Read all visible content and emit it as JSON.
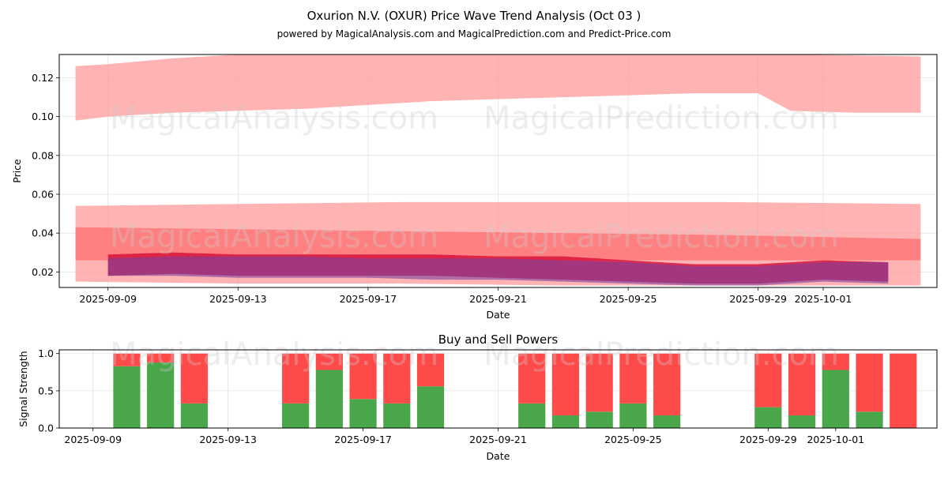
{
  "header": {
    "title": "Oxurion N.V. (OXUR) Price Wave Trend Analysis (Oct 03 )",
    "subtitle": "powered by MagicalAnalysis.com and MagicalPrediction.com and Predict-Price.com"
  },
  "watermarks": [
    "MagicalAnalysis.com",
    "MagicalPrediction.com"
  ],
  "chart_data": [
    {
      "type": "area",
      "title": "",
      "xlabel": "Date",
      "ylabel": "Price",
      "x_range": [
        "2025-09-07T12:00",
        "2025-10-04T12:00"
      ],
      "ylim": [
        0.012,
        0.132
      ],
      "yticks": [
        0.02,
        0.04,
        0.06,
        0.08,
        0.1,
        0.12
      ],
      "xticks": [
        "2025-09-09",
        "2025-09-13",
        "2025-09-17",
        "2025-09-21",
        "2025-09-25",
        "2025-09-29",
        "2025-10-01"
      ],
      "grid": true,
      "bands": [
        {
          "name": "upper-wave-band",
          "color": "#ff9a9a",
          "opacity": 0.75,
          "x": [
            "2025-09-08",
            "2025-09-09",
            "2025-09-11",
            "2025-09-13",
            "2025-09-15",
            "2025-09-17",
            "2025-09-19",
            "2025-09-21",
            "2025-09-23",
            "2025-09-25",
            "2025-09-27",
            "2025-09-29",
            "2025-09-30",
            "2025-10-02",
            "2025-10-04"
          ],
          "upper": [
            0.126,
            0.127,
            0.13,
            0.132,
            0.132,
            0.132,
            0.132,
            0.132,
            0.132,
            0.132,
            0.132,
            0.132,
            0.132,
            0.1315,
            0.131
          ],
          "lower": [
            0.098,
            0.1,
            0.102,
            0.103,
            0.104,
            0.106,
            0.108,
            0.109,
            0.11,
            0.111,
            0.112,
            0.112,
            0.103,
            0.102,
            0.102
          ]
        },
        {
          "name": "outer-wave-band",
          "color": "#ff9a9a",
          "opacity": 0.75,
          "x": [
            "2025-09-08",
            "2025-09-13",
            "2025-09-18",
            "2025-09-23",
            "2025-09-28",
            "2025-10-04"
          ],
          "upper": [
            0.054,
            0.055,
            0.056,
            0.056,
            0.056,
            0.055
          ],
          "lower": [
            0.015,
            0.014,
            0.014,
            0.013,
            0.013,
            0.013
          ]
        },
        {
          "name": "middle-wave-band",
          "color": "#ff6b6b",
          "opacity": 0.7,
          "x": [
            "2025-09-08",
            "2025-09-13",
            "2025-09-18",
            "2025-09-23",
            "2025-09-28",
            "2025-10-04"
          ],
          "upper": [
            0.043,
            0.042,
            0.041,
            0.04,
            0.039,
            0.037
          ],
          "lower": [
            0.026,
            0.026,
            0.026,
            0.026,
            0.026,
            0.026
          ]
        },
        {
          "name": "inner-red-band",
          "color": "#d8143c",
          "opacity": 0.85,
          "x": [
            "2025-09-09",
            "2025-09-11",
            "2025-09-13",
            "2025-09-15",
            "2025-09-17",
            "2025-09-19",
            "2025-09-21",
            "2025-09-23",
            "2025-09-25",
            "2025-09-27",
            "2025-09-29",
            "2025-10-01",
            "2025-10-03"
          ],
          "upper": [
            0.029,
            0.03,
            0.029,
            0.029,
            0.029,
            0.029,
            0.028,
            0.028,
            0.026,
            0.024,
            0.024,
            0.026,
            0.025
          ],
          "lower": [
            0.018,
            0.019,
            0.018,
            0.018,
            0.018,
            0.018,
            0.017,
            0.016,
            0.015,
            0.014,
            0.014,
            0.016,
            0.015
          ]
        },
        {
          "name": "inner-purple-band",
          "color": "#7b3fa0",
          "opacity": 0.6,
          "x": [
            "2025-09-09",
            "2025-09-11",
            "2025-09-13",
            "2025-09-15",
            "2025-09-17",
            "2025-09-19",
            "2025-09-21",
            "2025-09-23",
            "2025-09-25",
            "2025-09-27",
            "2025-09-29",
            "2025-10-01",
            "2025-10-03"
          ],
          "upper": [
            0.027,
            0.028,
            0.028,
            0.028,
            0.027,
            0.027,
            0.027,
            0.026,
            0.025,
            0.023,
            0.023,
            0.025,
            0.025
          ],
          "lower": [
            0.018,
            0.018,
            0.017,
            0.017,
            0.017,
            0.016,
            0.016,
            0.015,
            0.014,
            0.013,
            0.013,
            0.015,
            0.014
          ]
        }
      ]
    },
    {
      "type": "bar",
      "title": "Buy and Sell Powers",
      "xlabel": "Date",
      "ylabel": "Signal Strength",
      "x_range": [
        "2025-09-08",
        "2025-10-04"
      ],
      "ylim": [
        0,
        1.05
      ],
      "yticks": [
        0.0,
        0.5,
        1.0
      ],
      "xticks": [
        "2025-09-09",
        "2025-09-13",
        "2025-09-17",
        "2025-09-21",
        "2025-09-25",
        "2025-09-29",
        "2025-10-01"
      ],
      "grid": true,
      "series": [
        {
          "name": "Buy",
          "color": "#4aa64a"
        },
        {
          "name": "Sell",
          "color": "#ff4a4a"
        }
      ],
      "dates": [
        "2025-09-10",
        "2025-09-11",
        "2025-09-12",
        "2025-09-15",
        "2025-09-16",
        "2025-09-17",
        "2025-09-18",
        "2025-09-19",
        "2025-09-22",
        "2025-09-23",
        "2025-09-24",
        "2025-09-25",
        "2025-09-26",
        "2025-09-29",
        "2025-09-30",
        "2025-10-01",
        "2025-10-02",
        "2025-10-03"
      ],
      "buy": [
        0.83,
        0.88,
        0.33,
        0.33,
        0.78,
        0.39,
        0.33,
        0.56,
        0.33,
        0.17,
        0.22,
        0.33,
        0.17,
        0.28,
        0.17,
        0.78,
        0.22,
        0.0
      ],
      "sell": [
        0.17,
        0.12,
        0.67,
        0.67,
        0.22,
        0.61,
        0.67,
        0.44,
        0.67,
        0.83,
        0.78,
        0.67,
        0.83,
        0.72,
        0.83,
        0.22,
        0.78,
        1.0
      ]
    }
  ]
}
